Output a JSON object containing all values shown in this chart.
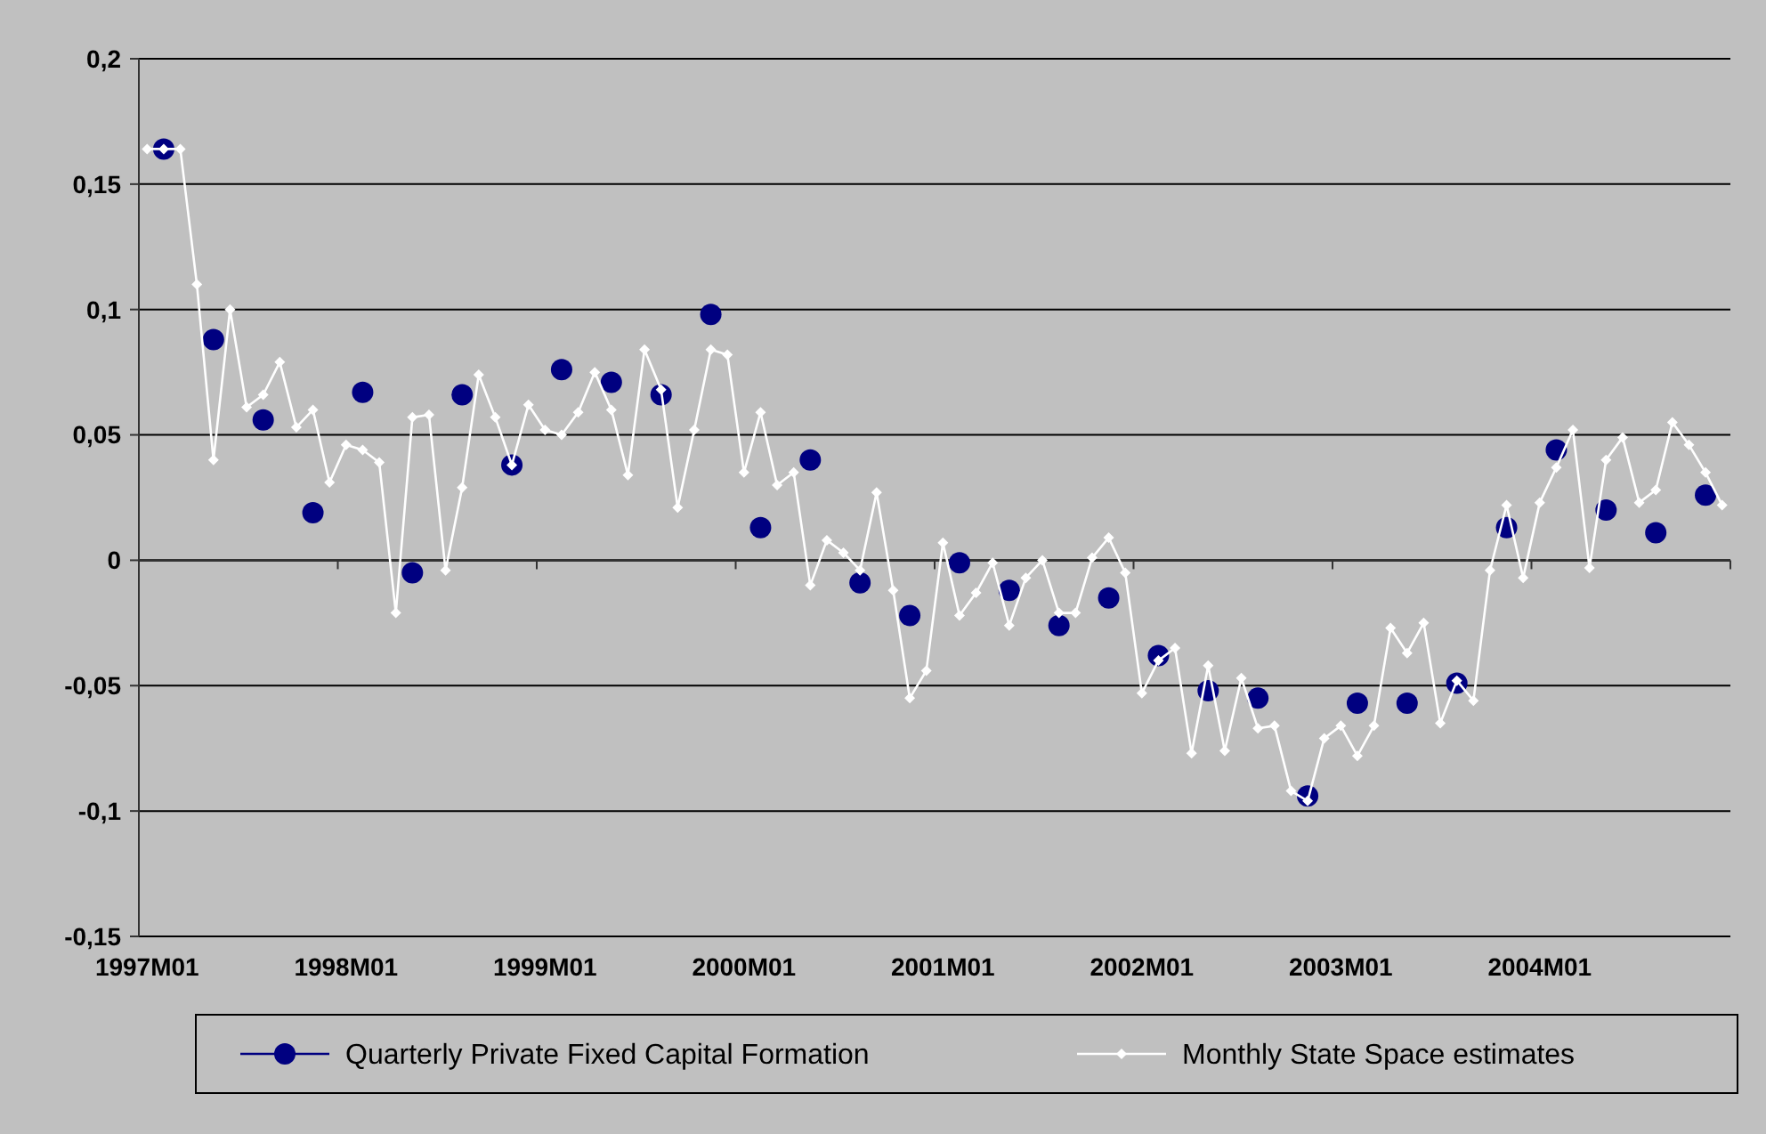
{
  "chart_data": {
    "type": "line",
    "categories": [
      "1997M01",
      null,
      null,
      null,
      null,
      null,
      null,
      null,
      null,
      null,
      null,
      null,
      "1998M01",
      null,
      null,
      null,
      null,
      null,
      null,
      null,
      null,
      null,
      null,
      null,
      "1999M01",
      null,
      null,
      null,
      null,
      null,
      null,
      null,
      null,
      null,
      null,
      null,
      "2000M01",
      null,
      null,
      null,
      null,
      null,
      null,
      null,
      null,
      null,
      null,
      null,
      "2001M01",
      null,
      null,
      null,
      null,
      null,
      null,
      null,
      null,
      null,
      null,
      null,
      "2002M01",
      null,
      null,
      null,
      null,
      null,
      null,
      null,
      null,
      null,
      null,
      null,
      "2003M01",
      null,
      null,
      null,
      null,
      null,
      null,
      null,
      null,
      null,
      null,
      null,
      "2004M01",
      null,
      null,
      null,
      null,
      null,
      null,
      null,
      null,
      null,
      null,
      null
    ],
    "ylim": [
      -0.15,
      0.2
    ],
    "yticks": [
      {
        "value": -0.15,
        "label": "-0,15"
      },
      {
        "value": -0.1,
        "label": "-0,1"
      },
      {
        "value": -0.05,
        "label": "-0,05"
      },
      {
        "value": 0,
        "label": "0"
      },
      {
        "value": 0.05,
        "label": "0,05"
      },
      {
        "value": 0.1,
        "label": "0,1"
      },
      {
        "value": 0.15,
        "label": "0,15"
      },
      {
        "value": 0.2,
        "label": "0,2"
      }
    ],
    "grid": "y",
    "legend": "bottom",
    "series": [
      {
        "name": "Monthly State Space estimates",
        "color": "#ffffff",
        "marker": "diamond",
        "values": [
          0.164,
          0.164,
          0.164,
          0.11,
          0.04,
          0.1,
          0.061,
          0.066,
          0.079,
          0.053,
          0.06,
          0.031,
          0.046,
          0.044,
          0.039,
          -0.021,
          0.057,
          0.058,
          -0.004,
          0.029,
          0.074,
          0.057,
          0.038,
          0.062,
          0.052,
          0.05,
          0.059,
          0.075,
          0.06,
          0.034,
          0.084,
          0.068,
          0.021,
          0.052,
          0.084,
          0.082,
          0.035,
          0.059,
          0.03,
          0.035,
          -0.01,
          0.008,
          0.003,
          -0.004,
          0.027,
          -0.012,
          -0.055,
          -0.044,
          0.007,
          -0.022,
          -0.013,
          -0.001,
          -0.026,
          -0.007,
          0.0,
          -0.021,
          -0.021,
          0.001,
          0.009,
          -0.005,
          -0.053,
          -0.04,
          -0.035,
          -0.077,
          -0.042,
          -0.076,
          -0.047,
          -0.067,
          -0.066,
          -0.092,
          -0.096,
          -0.071,
          -0.066,
          -0.078,
          -0.066,
          -0.027,
          -0.037,
          -0.025,
          -0.065,
          -0.048,
          -0.056,
          -0.004,
          0.022,
          -0.007,
          0.023,
          0.037,
          0.052,
          -0.003,
          0.04,
          0.049,
          0.023,
          0.028,
          0.055,
          0.046,
          0.035,
          0.022
        ]
      },
      {
        "name": "Quarterly Private Fixed Capital Formation",
        "type": "scatter",
        "color": "#000080",
        "marker": "circle",
        "values": [
          null,
          0.164,
          null,
          null,
          0.088,
          null,
          null,
          0.056,
          null,
          null,
          0.019,
          null,
          null,
          0.067,
          null,
          null,
          -0.005,
          null,
          null,
          0.066,
          null,
          null,
          0.038,
          null,
          null,
          0.076,
          null,
          null,
          0.071,
          null,
          null,
          0.066,
          null,
          null,
          0.098,
          null,
          null,
          0.013,
          null,
          null,
          0.04,
          null,
          null,
          -0.009,
          null,
          null,
          -0.022,
          null,
          null,
          -0.001,
          null,
          null,
          -0.012,
          null,
          null,
          -0.026,
          null,
          null,
          -0.015,
          null,
          null,
          -0.038,
          null,
          null,
          -0.052,
          null,
          null,
          -0.055,
          null,
          null,
          -0.094,
          null,
          null,
          -0.057,
          null,
          null,
          -0.057,
          null,
          null,
          -0.049,
          null,
          null,
          0.013,
          null,
          null,
          0.044,
          null,
          null,
          0.02,
          null,
          null,
          0.011,
          null,
          null,
          0.026,
          null
        ]
      }
    ]
  }
}
